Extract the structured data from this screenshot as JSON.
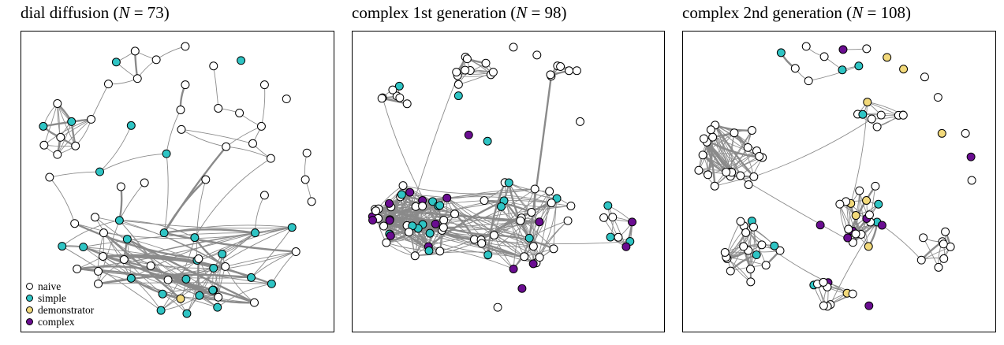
{
  "colors": {
    "naive": "#ffffff",
    "simple": "#2ec4c4",
    "demonstrator": "#f2d97a",
    "complex": "#6a0d91",
    "edge": "#8a8a8a",
    "stroke": "#000000"
  },
  "legend": [
    {
      "key": "naive",
      "label": "naive"
    },
    {
      "key": "simple",
      "label": "simple"
    },
    {
      "key": "demonstrator",
      "label": "demonstrator"
    },
    {
      "key": "complex",
      "label": "complex"
    }
  ],
  "panels": [
    {
      "title_prefix": "dial diffusion (",
      "title_var": "N",
      "title_suffix": " = 73)"
    },
    {
      "title_prefix": "complex 1st generation (",
      "title_var": "N",
      "title_suffix": " = 98)"
    },
    {
      "title_prefix": "complex 2nd generation (",
      "title_var": "N",
      "title_suffix": " = 108)"
    }
  ]
}
